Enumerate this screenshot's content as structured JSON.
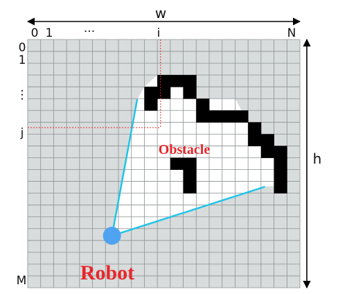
{
  "labels": {
    "width": "w",
    "height": "h",
    "col_first": "0",
    "col_second": "1",
    "col_ellipsis": "···",
    "col_i": "i",
    "col_last": "N",
    "row_first": "0",
    "row_second": "1",
    "row_ellipsis": "⋮",
    "row_j": "j",
    "row_last": "M",
    "obstacle": "Obstacle",
    "robot": "Robot"
  },
  "colors": {
    "grid_cell": "#d8dcdc",
    "grid_line": "#8a9090",
    "free_space": "#ffffff",
    "obstacle_cell": "#000000",
    "ray": "#21c4e8",
    "robot": "#4fa3f0",
    "dashed_guide": "#e8262b",
    "label_red": "#e8262b"
  },
  "grid": {
    "columns": 21,
    "rows": 21
  },
  "obstacle_cells": [
    [
      10,
      3
    ],
    [
      11,
      3
    ],
    [
      12,
      3
    ],
    [
      9,
      4
    ],
    [
      10,
      4
    ],
    [
      12,
      4
    ],
    [
      9,
      5
    ],
    [
      13,
      5
    ],
    [
      13,
      6
    ],
    [
      14,
      6
    ],
    [
      15,
      6
    ],
    [
      16,
      6
    ],
    [
      17,
      7
    ],
    [
      17,
      8
    ],
    [
      18,
      8
    ],
    [
      18,
      9
    ],
    [
      19,
      9
    ],
    [
      19,
      10
    ],
    [
      19,
      11
    ],
    [
      19,
      12
    ],
    [
      11,
      10
    ],
    [
      12,
      10
    ],
    [
      12,
      11
    ],
    [
      12,
      12
    ]
  ],
  "visible_polygon_cells": [
    [
      9,
      5
    ],
    [
      19,
      13
    ],
    [
      7,
      16
    ]
  ],
  "robot_cell": [
    6,
    16
  ]
}
